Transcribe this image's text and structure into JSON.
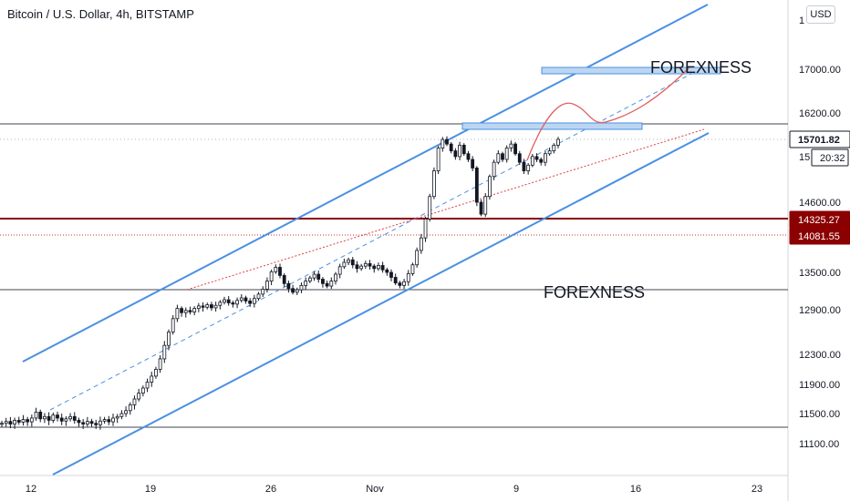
{
  "chart_data": {
    "type": "candlestick",
    "title": "Bitcoin / U.S. Dollar, 4h, BITSTAMP",
    "currency": "USD",
    "y_ticks": [
      17000,
      16200,
      14600,
      13500,
      12900,
      12300,
      11900,
      11500,
      11100
    ],
    "y_tick_labels": [
      "17000.00",
      "16200.00",
      "14600.00",
      "13500.00",
      "12900.00",
      "12300.00",
      "11900.00",
      "11500.00",
      "11100.00"
    ],
    "x_ticks": [
      "12",
      "19",
      "26",
      "Nov",
      "9",
      "16",
      "23"
    ],
    "price_labels": [
      {
        "value": 15701.82,
        "text": "15701.82",
        "style": "current"
      },
      {
        "value": 15400,
        "text": "20:32",
        "style": "countdown"
      },
      {
        "value": 14325.27,
        "text": "14325.27",
        "style": "level"
      },
      {
        "value": 14081.55,
        "text": "14081.55",
        "style": "level"
      }
    ],
    "annotations": [
      "FOREXNESS",
      "FOREXNESS"
    ],
    "ohlc_closes": [
      11370,
      11395,
      11360,
      11410,
      11385,
      11420,
      11390,
      11440,
      11520,
      11430,
      11460,
      11410,
      11480,
      11440,
      11400,
      11430,
      11460,
      11410,
      11380,
      11360,
      11395,
      11370,
      11350,
      11400,
      11420,
      11390,
      11440,
      11460,
      11500,
      11540,
      11620,
      11700,
      11780,
      11850,
      11930,
      12010,
      12100,
      12240,
      12420,
      12600,
      12780,
      12920,
      12860,
      12890,
      12870,
      12920,
      12960,
      12940,
      12980,
      12930,
      12970,
      13020,
      13060,
      13010,
      12990,
      13050,
      13090,
      13040,
      13000,
      13080,
      13150,
      13230,
      13360,
      13510,
      13580,
      13450,
      13320,
      13240,
      13180,
      13220,
      13290,
      13360,
      13410,
      13470,
      13390,
      13320,
      13280,
      13360,
      13470,
      13590,
      13660,
      13700,
      13620,
      13560,
      13600,
      13640,
      13600,
      13560,
      13610,
      13540,
      13500,
      13420,
      13330,
      13290,
      13350,
      13480,
      13620,
      13850,
      14050,
      14320,
      14700,
      15150,
      15550,
      15700,
      15620,
      15500,
      15400,
      15600,
      15450,
      15350,
      15200,
      14600,
      14400,
      14700,
      15050,
      15300,
      15450,
      15350,
      15550,
      15620,
      15450,
      15300,
      15150,
      15250,
      15400,
      15350,
      15300,
      15450,
      15500,
      15600,
      15701.82
    ]
  }
}
